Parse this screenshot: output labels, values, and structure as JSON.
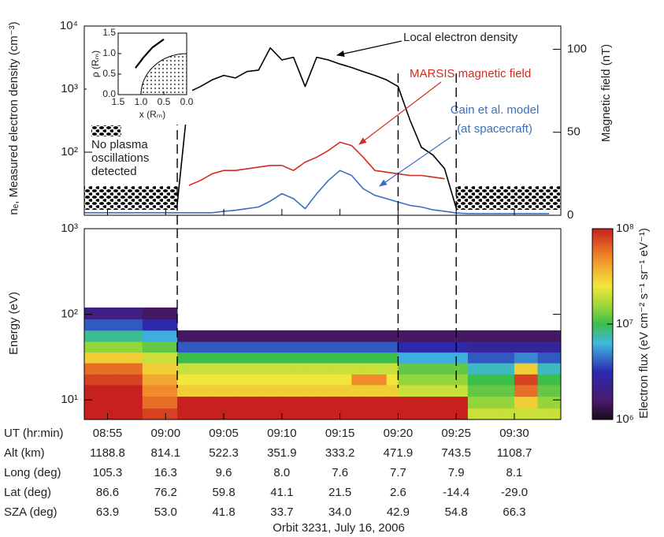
{
  "chart_data": [
    {
      "type": "line",
      "ylabel": "nₑ, Measured electron density (cm⁻³)",
      "y2label": "Magnetic field (nT)",
      "xlim": [
        "08:53",
        "09:34"
      ],
      "ylim": [
        10,
        10000
      ],
      "ylog": true,
      "yticks": [
        {
          "value": 100,
          "label": "10²"
        },
        {
          "value": 1000,
          "label": "10³"
        },
        {
          "value": 10000,
          "label": "10⁴"
        }
      ],
      "y2lim": [
        0,
        114
      ],
      "y2ticks": [
        0,
        50,
        100
      ],
      "x": [
        "08:53",
        "08:54",
        "08:55",
        "08:56",
        "08:57",
        "08:58",
        "08:59",
        "09:00",
        "09:01",
        "09:02",
        "09:03",
        "09:04",
        "09:05",
        "09:06",
        "09:07",
        "09:08",
        "09:09",
        "09:10",
        "09:11",
        "09:12",
        "09:13",
        "09:14",
        "09:15",
        "09:16",
        "09:17",
        "09:18",
        "09:19",
        "09:20",
        "09:21",
        "09:22",
        "09:23",
        "09:24",
        "09:25",
        "09:26",
        "09:27",
        "09:28",
        "09:29",
        "09:30",
        "09:31",
        "09:32",
        "09:33"
      ],
      "series": [
        {
          "name": "Local electron density",
          "color": "#000000",
          "values": [
            null,
            null,
            null,
            null,
            null,
            null,
            null,
            null,
            15,
            900,
            1100,
            1400,
            1650,
            1500,
            1900,
            2000,
            4500,
            2900,
            3200,
            1100,
            3200,
            2900,
            2500,
            2200,
            1900,
            1650,
            1400,
            1100,
            330,
            120,
            90,
            55,
            13,
            null,
            null,
            null,
            null,
            null,
            null,
            null,
            null
          ]
        },
        {
          "name": "MARSIS magnetic field",
          "color": "#d42a20",
          "axis": "y2",
          "values": [
            null,
            null,
            null,
            null,
            null,
            null,
            null,
            null,
            null,
            18,
            21,
            25,
            27,
            27,
            28,
            29,
            30,
            30,
            27,
            32,
            35,
            39,
            44,
            42,
            35,
            27,
            26,
            25,
            24,
            24,
            23,
            22,
            null,
            null,
            null,
            null,
            null,
            null,
            null,
            null,
            null
          ]
        },
        {
          "name": "Cain et al. model",
          "color": "#3a6fc4",
          "axis": "y2",
          "values": [
            1.5,
            1.5,
            1.5,
            1.5,
            1.5,
            1.5,
            1.5,
            1.5,
            1.5,
            1.5,
            1.5,
            1.5,
            2.4,
            3,
            4,
            5,
            8.5,
            13,
            10,
            4,
            13,
            21,
            27,
            24,
            16,
            12,
            10,
            8,
            6,
            5,
            3.3,
            2.4,
            1.4,
            1,
            1,
            1,
            1,
            1,
            1,
            1,
            1
          ]
        }
      ],
      "annotations": [
        "(at spacecraft)"
      ],
      "no_data_label": [
        "No plasma",
        "oscillations",
        "detected"
      ],
      "vlines": [
        "09:01",
        "09:20",
        "09:25"
      ]
    },
    {
      "type": "heatmap",
      "ylabel": "Energy (eV)",
      "xlim": [
        "08:53",
        "09:34"
      ],
      "ylim": [
        5.9,
        1000
      ],
      "ylog": true,
      "yticks": [
        {
          "value": 10,
          "label": "10¹"
        },
        {
          "value": 100,
          "label": "10²"
        },
        {
          "value": 1000,
          "label": "10³"
        }
      ],
      "x": [
        "08:53",
        "08:54",
        "08:55",
        "08:56",
        "08:57",
        "08:58",
        "08:59",
        "09:00",
        "09:01",
        "09:02",
        "09:03",
        "09:04",
        "09:05",
        "09:06",
        "09:07",
        "09:08",
        "09:09",
        "09:10",
        "09:11",
        "09:12",
        "09:13",
        "09:14",
        "09:15",
        "09:16",
        "09:17",
        "09:18",
        "09:19",
        "09:20",
        "09:21",
        "09:22",
        "09:23",
        "09:24",
        "09:25",
        "09:26",
        "09:27",
        "09:28",
        "09:29",
        "09:30",
        "09:31",
        "09:32",
        "09:33"
      ],
      "ybins": [
        5.9,
        8,
        11,
        15,
        20,
        27,
        36,
        48,
        65,
        88,
        120,
        1000
      ],
      "values": [
        [
          100000000.0,
          100000000.0,
          100000000.0,
          80000000.0,
          60000000.0,
          30000000.0,
          15000000.0,
          8000000.0,
          4000000.0,
          2000000.0,
          null
        ],
        [
          100000000.0,
          100000000.0,
          100000000.0,
          80000000.0,
          60000000.0,
          30000000.0,
          15000000.0,
          8000000.0,
          4000000.0,
          2000000.0,
          null
        ],
        [
          100000000.0,
          100000000.0,
          100000000.0,
          80000000.0,
          60000000.0,
          30000000.0,
          15000000.0,
          8000000.0,
          4000000.0,
          2000000.0,
          null
        ],
        [
          100000000.0,
          100000000.0,
          100000000.0,
          80000000.0,
          60000000.0,
          30000000.0,
          15000000.0,
          8000000.0,
          4000000.0,
          2000000.0,
          null
        ],
        [
          100000000.0,
          100000000.0,
          100000000.0,
          80000000.0,
          60000000.0,
          30000000.0,
          15000000.0,
          8000000.0,
          4000000.0,
          2000000.0,
          null
        ],
        [
          80000000.0,
          60000000.0,
          50000000.0,
          40000000.0,
          30000000.0,
          20000000.0,
          12000000.0,
          6000000.0,
          3000000.0,
          1500000.0,
          null
        ],
        [
          80000000.0,
          60000000.0,
          50000000.0,
          40000000.0,
          30000000.0,
          20000000.0,
          12000000.0,
          6000000.0,
          3000000.0,
          1500000.0,
          null
        ],
        [
          80000000.0,
          60000000.0,
          50000000.0,
          40000000.0,
          30000000.0,
          20000000.0,
          12000000.0,
          6000000.0,
          3000000.0,
          1500000.0,
          null
        ],
        [
          100000000.0,
          100000000.0,
          30000000.0,
          25000000.0,
          20000000.0,
          10000000.0,
          4000000.0,
          1500000.0,
          null,
          null,
          null
        ],
        [
          100000000.0,
          100000000.0,
          30000000.0,
          25000000.0,
          20000000.0,
          10000000.0,
          4000000.0,
          1500000.0,
          null,
          null,
          null
        ],
        [
          100000000.0,
          100000000.0,
          30000000.0,
          25000000.0,
          20000000.0,
          10000000.0,
          4000000.0,
          1500000.0,
          null,
          null,
          null
        ],
        [
          100000000.0,
          100000000.0,
          30000000.0,
          25000000.0,
          20000000.0,
          10000000.0,
          4000000.0,
          1500000.0,
          null,
          null,
          null
        ],
        [
          100000000.0,
          100000000.0,
          30000000.0,
          25000000.0,
          20000000.0,
          10000000.0,
          4000000.0,
          1500000.0,
          null,
          null,
          null
        ],
        [
          100000000.0,
          100000000.0,
          30000000.0,
          25000000.0,
          20000000.0,
          10000000.0,
          4000000.0,
          1500000.0,
          null,
          null,
          null
        ],
        [
          100000000.0,
          100000000.0,
          30000000.0,
          25000000.0,
          20000000.0,
          10000000.0,
          4000000.0,
          1500000.0,
          null,
          null,
          null
        ],
        [
          100000000.0,
          100000000.0,
          30000000.0,
          25000000.0,
          20000000.0,
          10000000.0,
          4000000.0,
          1500000.0,
          null,
          null,
          null
        ],
        [
          100000000.0,
          100000000.0,
          30000000.0,
          25000000.0,
          20000000.0,
          10000000.0,
          4000000.0,
          1500000.0,
          null,
          null,
          null
        ],
        [
          100000000.0,
          100000000.0,
          30000000.0,
          25000000.0,
          20000000.0,
          10000000.0,
          4000000.0,
          1500000.0,
          null,
          null,
          null
        ],
        [
          100000000.0,
          100000000.0,
          30000000.0,
          25000000.0,
          20000000.0,
          10000000.0,
          4000000.0,
          1500000.0,
          null,
          null,
          null
        ],
        [
          100000000.0,
          100000000.0,
          30000000.0,
          25000000.0,
          20000000.0,
          10000000.0,
          4000000.0,
          1500000.0,
          null,
          null,
          null
        ],
        [
          100000000.0,
          100000000.0,
          30000000.0,
          25000000.0,
          20000000.0,
          10000000.0,
          4000000.0,
          1500000.0,
          null,
          null,
          null
        ],
        [
          100000000.0,
          100000000.0,
          30000000.0,
          25000000.0,
          20000000.0,
          10000000.0,
          4000000.0,
          1500000.0,
          null,
          null,
          null
        ],
        [
          100000000.0,
          100000000.0,
          30000000.0,
          25000000.0,
          20000000.0,
          10000000.0,
          4000000.0,
          1500000.0,
          null,
          null,
          null
        ],
        [
          100000000.0,
          100000000.0,
          30000000.0,
          50000000.0,
          20000000.0,
          10000000.0,
          4000000.0,
          1500000.0,
          null,
          null,
          null
        ],
        [
          100000000.0,
          100000000.0,
          30000000.0,
          50000000.0,
          20000000.0,
          10000000.0,
          4000000.0,
          1500000.0,
          null,
          null,
          null
        ],
        [
          100000000.0,
          100000000.0,
          30000000.0,
          50000000.0,
          20000000.0,
          10000000.0,
          4000000.0,
          1500000.0,
          null,
          null,
          null
        ],
        [
          100000000.0,
          100000000.0,
          30000000.0,
          25000000.0,
          20000000.0,
          10000000.0,
          4000000.0,
          1500000.0,
          null,
          null,
          null
        ],
        [
          100000000.0,
          100000000.0,
          20000000.0,
          15000000.0,
          12000000.0,
          6000000.0,
          3000000.0,
          1500000.0,
          null,
          null,
          null
        ],
        [
          100000000.0,
          100000000.0,
          20000000.0,
          15000000.0,
          12000000.0,
          6000000.0,
          3000000.0,
          1500000.0,
          null,
          null,
          null
        ],
        [
          100000000.0,
          100000000.0,
          20000000.0,
          15000000.0,
          12000000.0,
          6000000.0,
          3000000.0,
          1500000.0,
          null,
          null,
          null
        ],
        [
          100000000.0,
          100000000.0,
          20000000.0,
          15000000.0,
          12000000.0,
          6000000.0,
          3000000.0,
          1500000.0,
          null,
          null,
          null
        ],
        [
          100000000.0,
          100000000.0,
          20000000.0,
          15000000.0,
          12000000.0,
          6000000.0,
          3000000.0,
          1500000.0,
          null,
          null,
          null
        ],
        [
          100000000.0,
          100000000.0,
          20000000.0,
          15000000.0,
          12000000.0,
          6000000.0,
          3000000.0,
          1500000.0,
          null,
          null,
          null
        ],
        [
          20000000.0,
          15000000.0,
          12000000.0,
          10000000.0,
          7000000.0,
          4000000.0,
          2500000.0,
          1500000.0,
          null,
          null,
          null
        ],
        [
          20000000.0,
          15000000.0,
          12000000.0,
          10000000.0,
          7000000.0,
          4000000.0,
          2500000.0,
          1500000.0,
          null,
          null,
          null
        ],
        [
          20000000.0,
          15000000.0,
          12000000.0,
          10000000.0,
          7000000.0,
          4000000.0,
          2500000.0,
          1500000.0,
          null,
          null,
          null
        ],
        [
          20000000.0,
          15000000.0,
          12000000.0,
          10000000.0,
          7000000.0,
          4000000.0,
          2500000.0,
          1500000.0,
          null,
          null,
          null
        ],
        [
          20000000.0,
          30000000.0,
          60000000.0,
          80000000.0,
          30000000.0,
          5000000.0,
          2500000.0,
          1500000.0,
          null,
          null,
          null
        ],
        [
          20000000.0,
          30000000.0,
          60000000.0,
          80000000.0,
          30000000.0,
          5000000.0,
          2500000.0,
          1500000.0,
          null,
          null,
          null
        ],
        [
          20000000.0,
          15000000.0,
          12000000.0,
          10000000.0,
          7000000.0,
          4000000.0,
          2500000.0,
          1500000.0,
          null,
          null,
          null
        ],
        [
          20000000.0,
          15000000.0,
          12000000.0,
          10000000.0,
          7000000.0,
          4000000.0,
          2500000.0,
          1500000.0,
          null,
          null,
          null
        ]
      ],
      "colorbar": {
        "label": "Electron flux (eV cm⁻² s⁻¹ sr⁻¹ eV⁻¹)",
        "lim": [
          1000000,
          100000000
        ],
        "ticks": [
          {
            "value": 1000000,
            "label": "10⁶"
          },
          {
            "value": 10000000,
            "label": "10⁷"
          },
          {
            "value": 100000000,
            "label": "10⁸"
          }
        ]
      },
      "x_table": [
        {
          "label": "UT (hr:min)",
          "values": [
            "08:55",
            "09:00",
            "09:05",
            "09:10",
            "09:15",
            "09:20",
            "09:25",
            "09:30"
          ]
        },
        {
          "label": "Alt (km)",
          "values": [
            "1188.8",
            "814.1",
            "522.3",
            "351.9",
            "333.2",
            "471.9",
            "743.5",
            "1108.7"
          ]
        },
        {
          "label": "Long (deg)",
          "values": [
            "105.3",
            "16.3",
            "9.6",
            "8.0",
            "7.6",
            "7.7",
            "7.9",
            "8.1"
          ]
        },
        {
          "label": "Lat (deg)",
          "values": [
            "86.6",
            "76.2",
            "59.8",
            "41.1",
            "21.5",
            "2.6",
            "-14.4",
            "-29.0"
          ]
        },
        {
          "label": "SZA (deg)",
          "values": [
            "63.9",
            "53.0",
            "41.8",
            "33.7",
            "34.0",
            "42.9",
            "54.8",
            "66.3"
          ]
        }
      ],
      "xlabel": "Orbit 3231, July 16, 2006"
    },
    {
      "type": "line",
      "xlabel": "x (Rₘ)",
      "ylabel": "ρ (Rₘ)",
      "xlim": [
        1.5,
        0
      ],
      "ylim": [
        0,
        1.5
      ],
      "xticks": [
        1.5,
        {
          "value": 1,
          "label": "1.0"
        },
        0.5,
        {
          "value": 0,
          "label": "0.0"
        }
      ],
      "yticks": [
        {
          "value": 0,
          "label": "0.0"
        },
        0.5,
        {
          "value": 1,
          "label": "1.0"
        },
        1.5
      ],
      "x": [
        1.12,
        0.95,
        0.75,
        0.5
      ],
      "values": [
        0.65,
        0.9,
        1.15,
        1.35
      ]
    }
  ]
}
